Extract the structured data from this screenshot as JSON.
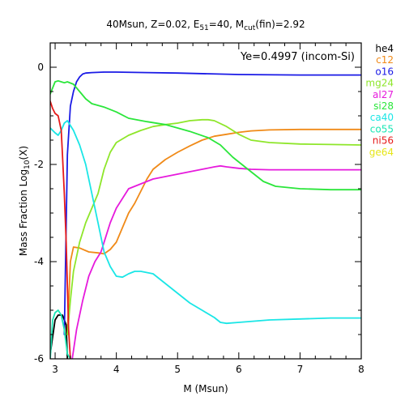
{
  "chart_data": {
    "type": "line",
    "title_parts": {
      "main": "40Msun, Z=0.02, E",
      "e_sub": "51",
      "mid": "=40, M",
      "m_sub": "cut",
      "end": "(fin)=2.92"
    },
    "xlabel": "M (Msun)",
    "ylabel_parts": {
      "main": "Mass Fraction Log",
      "sub": "10",
      "end": "(X)"
    },
    "xlim": [
      2.92,
      8.0
    ],
    "ylim": [
      -6.0,
      0.5
    ],
    "x_ticks": [
      3,
      4,
      5,
      6,
      7,
      8
    ],
    "y_ticks": [
      0,
      -2,
      -4,
      -6
    ],
    "annotation": "Ye=0.4997 (incom-Si)",
    "legend_position": "right-outside",
    "series": [
      {
        "name": "he4",
        "color": "#000000",
        "x": [
          2.92,
          3.0,
          3.05,
          3.12,
          3.18,
          3.2
        ],
        "y": [
          -5.9,
          -5.2,
          -5.1,
          -5.1,
          -5.3,
          -6.0
        ]
      },
      {
        "name": "c12",
        "color": "#f08a18",
        "x": [
          3.2,
          3.25,
          3.3,
          3.4,
          3.55,
          3.7,
          3.8,
          3.9,
          4.0,
          4.1,
          4.2,
          4.3,
          4.4,
          4.5,
          4.6,
          4.8,
          5.0,
          5.2,
          5.4,
          5.6,
          5.8,
          6.0,
          6.2,
          6.5,
          7.0,
          7.5,
          8.0
        ],
        "y": [
          -5.5,
          -4.0,
          -3.7,
          -3.72,
          -3.8,
          -3.82,
          -3.84,
          -3.75,
          -3.6,
          -3.3,
          -3.0,
          -2.8,
          -2.55,
          -2.3,
          -2.1,
          -1.9,
          -1.75,
          -1.62,
          -1.5,
          -1.42,
          -1.38,
          -1.34,
          -1.31,
          -1.29,
          -1.28,
          -1.28,
          -1.28
        ]
      },
      {
        "name": "o16",
        "color": "#1a1ae6",
        "x": [
          3.15,
          3.2,
          3.25,
          3.3,
          3.35,
          3.4,
          3.45,
          3.5,
          3.6,
          3.8,
          4.0,
          4.5,
          5.0,
          6.0,
          7.0,
          8.0
        ],
        "y": [
          -5.5,
          -1.8,
          -0.8,
          -0.5,
          -0.3,
          -0.2,
          -0.14,
          -0.12,
          -0.11,
          -0.1,
          -0.1,
          -0.11,
          -0.12,
          -0.15,
          -0.16,
          -0.16
        ]
      },
      {
        "name": "mg24",
        "color": "#8ee62a",
        "x": [
          3.2,
          3.25,
          3.3,
          3.4,
          3.5,
          3.6,
          3.7,
          3.8,
          3.9,
          4.0,
          4.2,
          4.4,
          4.6,
          4.8,
          5.0,
          5.2,
          5.4,
          5.5,
          5.6,
          5.8,
          6.0,
          6.2,
          6.5,
          7.0,
          7.5,
          8.0
        ],
        "y": [
          -5.5,
          -4.8,
          -4.2,
          -3.6,
          -3.2,
          -2.9,
          -2.6,
          -2.1,
          -1.75,
          -1.55,
          -1.4,
          -1.3,
          -1.22,
          -1.18,
          -1.15,
          -1.1,
          -1.08,
          -1.08,
          -1.1,
          -1.22,
          -1.38,
          -1.5,
          -1.55,
          -1.58,
          -1.59,
          -1.6
        ]
      },
      {
        "name": "al27",
        "color": "#e61adc",
        "x": [
          3.28,
          3.35,
          3.45,
          3.55,
          3.65,
          3.75,
          3.9,
          4.0,
          4.2,
          4.4,
          4.6,
          4.8,
          5.0,
          5.2,
          5.4,
          5.6,
          5.7,
          5.8,
          6.0,
          6.2,
          6.5,
          7.0,
          7.5,
          8.0
        ],
        "y": [
          -6.0,
          -5.4,
          -4.8,
          -4.3,
          -4.0,
          -3.8,
          -3.2,
          -2.9,
          -2.5,
          -2.4,
          -2.3,
          -2.25,
          -2.2,
          -2.15,
          -2.1,
          -2.05,
          -2.03,
          -2.05,
          -2.08,
          -2.1,
          -2.11,
          -2.11,
          -2.11,
          -2.11
        ]
      },
      {
        "name": "si28",
        "color": "#2ae63a",
        "x": [
          2.92,
          3.0,
          3.05,
          3.1,
          3.15,
          3.2,
          3.3,
          3.4,
          3.5,
          3.6,
          3.8,
          4.0,
          4.2,
          4.5,
          4.8,
          5.0,
          5.2,
          5.5,
          5.7,
          5.9,
          6.0,
          6.2,
          6.4,
          6.6,
          7.0,
          7.5,
          8.0
        ],
        "y": [
          -0.55,
          -0.3,
          -0.28,
          -0.3,
          -0.32,
          -0.3,
          -0.35,
          -0.5,
          -0.65,
          -0.75,
          -0.82,
          -0.92,
          -1.05,
          -1.12,
          -1.18,
          -1.25,
          -1.32,
          -1.45,
          -1.6,
          -1.85,
          -1.95,
          -2.15,
          -2.35,
          -2.45,
          -2.5,
          -2.52,
          -2.52
        ]
      },
      {
        "name": "ca40",
        "color": "#1ae6e6",
        "x": [
          2.92,
          3.0,
          3.05,
          3.1,
          3.15,
          3.2,
          3.3,
          3.4,
          3.5,
          3.6,
          3.7,
          3.8,
          3.9,
          4.0,
          4.1,
          4.2,
          4.3,
          4.4,
          4.6,
          4.8,
          5.0,
          5.2,
          5.4,
          5.6,
          5.7,
          5.8,
          6.0,
          6.5,
          7.0,
          7.5,
          8.0
        ],
        "y": [
          -1.25,
          -1.35,
          -1.4,
          -1.3,
          -1.15,
          -1.1,
          -1.3,
          -1.6,
          -2.0,
          -2.6,
          -3.2,
          -3.8,
          -4.1,
          -4.3,
          -4.32,
          -4.25,
          -4.2,
          -4.2,
          -4.25,
          -4.45,
          -4.65,
          -4.85,
          -5.0,
          -5.15,
          -5.25,
          -5.27,
          -5.25,
          -5.2,
          -5.18,
          -5.16,
          -5.16
        ]
      },
      {
        "name": "co55",
        "color": "#1ae6b4",
        "x": [
          2.92,
          2.96,
          3.0,
          3.05,
          3.1,
          3.15,
          3.2,
          3.25
        ],
        "y": [
          -6.0,
          -5.2,
          -5.05,
          -5.0,
          -5.1,
          -5.4,
          -5.9,
          -6.0
        ]
      },
      {
        "name": "ni56",
        "color": "#e61a1a",
        "x": [
          2.92,
          2.96,
          3.0,
          3.05,
          3.1,
          3.12,
          3.15,
          3.18,
          3.2,
          3.22,
          3.25
        ],
        "y": [
          -0.7,
          -0.85,
          -0.95,
          -1.0,
          -1.3,
          -1.8,
          -2.6,
          -3.6,
          -4.5,
          -5.4,
          -6.0
        ]
      },
      {
        "name": "ge64",
        "color": "#e6e61a",
        "x": [],
        "y": []
      }
    ]
  }
}
